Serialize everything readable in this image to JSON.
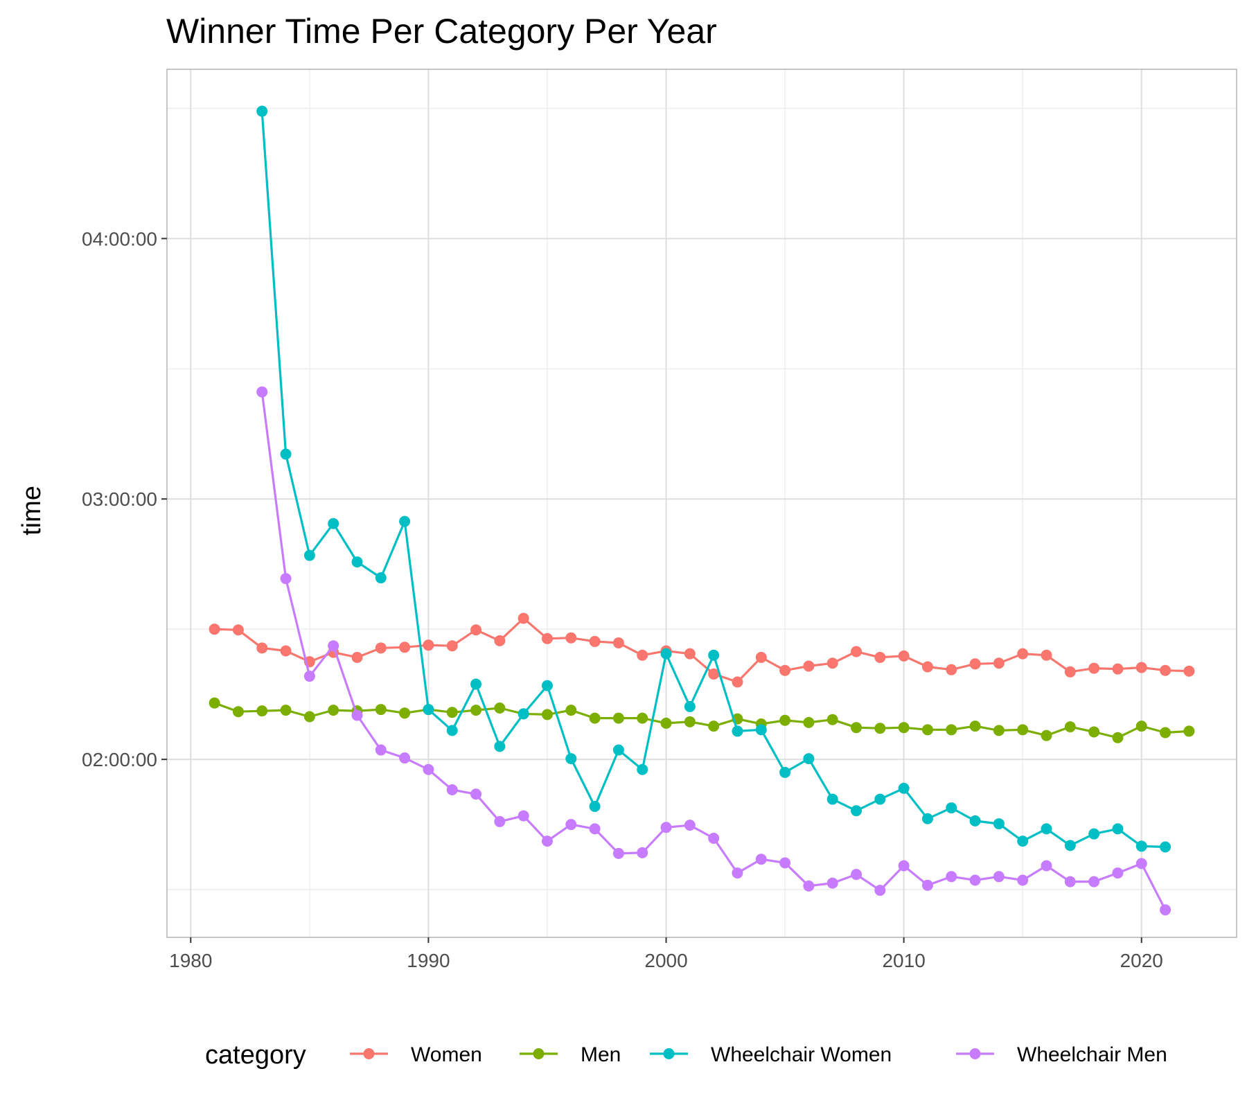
{
  "chart_data": {
    "type": "line",
    "title": "Winner Time Per Category Per Year",
    "xlabel": "",
    "ylabel": "time",
    "x_ticks": [
      1980,
      1990,
      2000,
      2010,
      2020
    ],
    "y_ticks": [
      {
        "seconds": 7200,
        "label": "02:00:00"
      },
      {
        "seconds": 10800,
        "label": "03:00:00"
      },
      {
        "seconds": 14400,
        "label": "04:00:00"
      }
    ],
    "xlim": [
      1979.0,
      2024.0
    ],
    "ylim": [
      4740,
      16740
    ],
    "grid": true,
    "legend": {
      "title": "category",
      "position": "bottom"
    },
    "series": [
      {
        "name": "Women",
        "color": "#F8766D",
        "x": [
          1981,
          1982,
          1983,
          1984,
          1985,
          1986,
          1987,
          1988,
          1989,
          1990,
          1991,
          1992,
          1993,
          1994,
          1995,
          1996,
          1997,
          1998,
          1999,
          2000,
          2001,
          2002,
          2003,
          2004,
          2005,
          2006,
          2007,
          2008,
          2009,
          2010,
          2011,
          2012,
          2013,
          2014,
          2015,
          2016,
          2017,
          2018,
          2019,
          2020,
          2021,
          2022
        ],
        "y": [
          9000,
          8990,
          8740,
          8700,
          8550,
          8680,
          8610,
          8740,
          8750,
          8780,
          8770,
          8990,
          8840,
          9150,
          8870,
          8880,
          8830,
          8810,
          8640,
          8700,
          8660,
          8380,
          8270,
          8610,
          8430,
          8490,
          8530,
          8690,
          8610,
          8630,
          8480,
          8440,
          8520,
          8530,
          8660,
          8640,
          8410,
          8460,
          8450,
          8470,
          8430,
          8420
        ],
        "y_labels": [
          "02:30:00",
          "02:29:50",
          "02:25:40",
          "02:25:00",
          "02:22:30",
          "02:24:40",
          "02:23:30",
          "02:25:40",
          "02:25:50",
          "02:26:20",
          "02:26:10",
          "02:29:50",
          "02:27:20",
          "02:32:30",
          "02:27:50",
          "02:28:00",
          "02:27:10",
          "02:26:50",
          "02:24:00",
          "02:25:00",
          "02:24:20",
          "02:19:40",
          "02:17:50",
          "02:23:30",
          "02:20:30",
          "02:21:30",
          "02:22:10",
          "02:24:50",
          "02:23:30",
          "02:23:50",
          "02:21:20",
          "02:20:40",
          "02:22:00",
          "02:22:10",
          "02:24:20",
          "02:24:00",
          "02:20:10",
          "02:21:00",
          "02:20:50",
          "02:21:10",
          "02:20:30",
          "02:20:20"
        ]
      },
      {
        "name": "Men",
        "color": "#7CAE00",
        "x": [
          1981,
          1982,
          1983,
          1984,
          1985,
          1986,
          1987,
          1988,
          1989,
          1990,
          1991,
          1992,
          1993,
          1994,
          1995,
          1996,
          1997,
          1998,
          1999,
          2000,
          2001,
          2002,
          2003,
          2004,
          2005,
          2006,
          2007,
          2008,
          2009,
          2010,
          2011,
          2012,
          2013,
          2014,
          2015,
          2016,
          2017,
          2018,
          2019,
          2020,
          2021,
          2022
        ],
        "y": [
          7980,
          7860,
          7870,
          7880,
          7790,
          7880,
          7870,
          7890,
          7840,
          7890,
          7850,
          7880,
          7910,
          7830,
          7820,
          7880,
          7770,
          7770,
          7770,
          7700,
          7720,
          7660,
          7760,
          7690,
          7740,
          7710,
          7750,
          7640,
          7630,
          7640,
          7610,
          7610,
          7660,
          7600,
          7610,
          7530,
          7650,
          7580,
          7500,
          7660,
          7570,
          7590
        ],
        "y_labels": [
          "02:13:00",
          "02:11:00",
          "02:11:10",
          "02:11:20",
          "02:09:50",
          "02:11:20",
          "02:11:10",
          "02:11:30",
          "02:10:40",
          "02:11:30",
          "02:10:50",
          "02:11:20",
          "02:11:50",
          "02:10:30",
          "02:10:20",
          "02:11:20",
          "02:09:30",
          "02:09:30",
          "02:09:30",
          "02:08:20",
          "02:08:40",
          "02:07:40",
          "02:09:20",
          "02:08:10",
          "02:09:00",
          "02:08:30",
          "02:09:10",
          "02:07:20",
          "02:07:10",
          "02:07:20",
          "02:06:50",
          "02:06:50",
          "02:07:40",
          "02:06:40",
          "02:06:50",
          "02:05:30",
          "02:07:30",
          "02:06:20",
          "02:05:00",
          "02:07:40",
          "02:06:10",
          "02:06:30"
        ]
      },
      {
        "name": "Wheelchair Women",
        "color": "#00BFC4",
        "x": [
          1983,
          1984,
          1985,
          1986,
          1987,
          1988,
          1989,
          1990,
          1991,
          1992,
          1993,
          1994,
          1995,
          1996,
          1997,
          1998,
          1999,
          2000,
          2001,
          2002,
          2003,
          2004,
          2005,
          2006,
          2007,
          2008,
          2009,
          2010,
          2011,
          2012,
          2013,
          2014,
          2015,
          2016,
          2017,
          2018,
          2019,
          2020,
          2021
        ],
        "y": [
          16160,
          11420,
          10020,
          10460,
          9930,
          9710,
          10490,
          7890,
          7600,
          8240,
          7380,
          7830,
          8220,
          7210,
          6550,
          7330,
          7060,
          8660,
          7930,
          8640,
          7590,
          7610,
          7020,
          7210,
          6650,
          6490,
          6650,
          6800,
          6380,
          6530,
          6350,
          6310,
          6070,
          6240,
          6010,
          6170,
          6240,
          6000,
          5990
        ],
        "y_labels": [
          "04:29:20",
          "03:10:20",
          "02:47:00",
          "02:54:20",
          "02:45:30",
          "02:41:50",
          "02:54:50",
          "02:11:30",
          "02:06:40",
          "02:17:20",
          "02:03:00",
          "02:10:30",
          "02:17:00",
          "02:00:10",
          "01:49:10",
          "02:02:10",
          "01:57:40",
          "02:24:20",
          "02:12:10",
          "02:24:00",
          "02:06:30",
          "02:06:50",
          "01:57:00",
          "02:00:10",
          "01:50:50",
          "01:48:10",
          "01:50:50",
          "01:53:20",
          "01:46:20",
          "01:48:50",
          "01:45:50",
          "01:45:10",
          "01:41:10",
          "01:44:00",
          "01:40:10",
          "01:42:50",
          "01:44:00",
          "01:40:00",
          "01:39:50"
        ]
      },
      {
        "name": "Wheelchair Men",
        "color": "#C77CFF",
        "x": [
          1983,
          1984,
          1985,
          1986,
          1987,
          1988,
          1989,
          1990,
          1991,
          1992,
          1993,
          1994,
          1995,
          1996,
          1997,
          1998,
          1999,
          2000,
          2001,
          2002,
          2003,
          2004,
          2005,
          2006,
          2007,
          2008,
          2009,
          2010,
          2011,
          2012,
          2013,
          2014,
          2015,
          2016,
          2017,
          2018,
          2019,
          2020,
          2021
        ],
        "y": [
          12280,
          9700,
          8350,
          8770,
          7810,
          7330,
          7220,
          7060,
          6780,
          6720,
          6340,
          6420,
          6070,
          6300,
          6240,
          5900,
          5910,
          6260,
          6290,
          6110,
          5630,
          5820,
          5770,
          5450,
          5490,
          5610,
          5390,
          5730,
          5460,
          5580,
          5530,
          5580,
          5530,
          5730,
          5510,
          5510,
          5630,
          5760,
          5120
        ],
        "y_labels": [
          "03:24:40",
          "02:41:40",
          "02:19:10",
          "02:26:10",
          "02:10:10",
          "02:02:10",
          "02:00:20",
          "01:57:40",
          "01:53:00",
          "01:52:00",
          "01:45:40",
          "01:47:00",
          "01:41:10",
          "01:45:00",
          "01:44:00",
          "01:38:20",
          "01:38:30",
          "01:44:20",
          "01:44:50",
          "01:41:50",
          "01:33:50",
          "01:37:00",
          "01:36:10",
          "01:30:50",
          "01:31:30",
          "01:33:30",
          "01:29:50",
          "01:35:30",
          "01:31:00",
          "01:33:00",
          "01:32:10",
          "01:33:00",
          "01:32:10",
          "01:35:30",
          "01:31:50",
          "01:31:50",
          "01:33:50",
          "01:36:00",
          "01:25:20"
        ]
      }
    ]
  }
}
